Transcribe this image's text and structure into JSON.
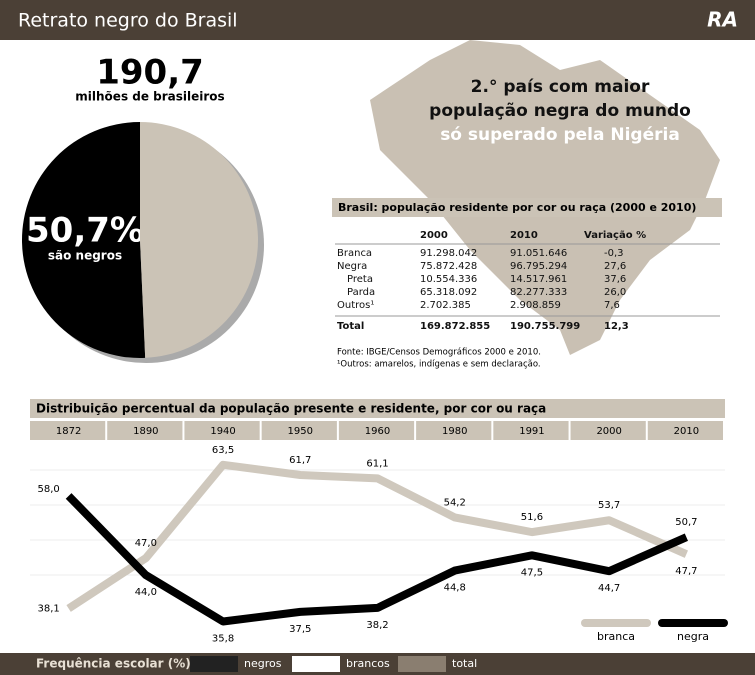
{
  "header": {
    "title": "Retrato negro do Brasil",
    "logo": "RA"
  },
  "callout": {
    "lines": [
      "2.° país com maior",
      "população negra do mundo"
    ],
    "highlight": "só superado pela Nigéria"
  },
  "chart_data": [
    {
      "type": "pie",
      "title": "190,7",
      "subtitle": "milhões de brasileiros",
      "categories": [
        null,
        null
      ],
      "values": [
        50.7,
        49.3
      ],
      "colors": [
        "#000000",
        "#cbc3b6"
      ],
      "value_labels": [
        "50,7%",
        null
      ],
      "value_note": "são negros"
    },
    {
      "type": "line",
      "title": "Distribuição percentual da população presente e residente, por cor ou raça",
      "categories": [
        "1872",
        "1890",
        "1940",
        "1950",
        "1960",
        "1980",
        "1991",
        "2000",
        "2010"
      ],
      "series": [
        {
          "name": "branca",
          "color": "#cfc8bd",
          "values": [
            38.1,
            47.0,
            63.5,
            61.7,
            61.1,
            54.2,
            51.6,
            53.7,
            47.7
          ],
          "value_labels": [
            "38,1",
            "47,0",
            "63,5",
            "61,7",
            "61,1",
            "54,2",
            "51,6",
            "53,7",
            "47,7"
          ]
        },
        {
          "name": "negra",
          "color": "#000000",
          "values": [
            58.0,
            44.0,
            35.8,
            37.5,
            38.2,
            44.8,
            47.5,
            44.7,
            50.7
          ],
          "value_labels": [
            "58,0",
            "44,0",
            "35,8",
            "37,5",
            "38,2",
            "44,8",
            "47,5",
            "44,7",
            "50,7"
          ]
        }
      ],
      "ylim": [
        32,
        67
      ]
    }
  ],
  "table": {
    "title": "Brasil: população residente por cor ou raça (2000 e 2010)",
    "columns": [
      "2000",
      "2010",
      "Variação %"
    ],
    "rows": [
      [
        "Branca",
        "91.298.042",
        "91.051.646",
        "-0,3"
      ],
      [
        "Negra",
        "75.872.428",
        "96.795.294",
        "27,6"
      ],
      [
        "Preta",
        "10.554.336",
        "14.517.961",
        "37,6"
      ],
      [
        "Parda",
        "65.318.092",
        "82.277.333",
        "26,0"
      ],
      [
        "Outros¹",
        "2.702.385",
        "2.908.859",
        "7,6"
      ],
      [
        "Total",
        "169.872.855",
        "190.755.799",
        "12,3"
      ]
    ],
    "notes": [
      "Fonte: IBGE/Censos Demográficos 2000 e 2010.",
      "¹Outros: amarelos, indígenas e sem declaração."
    ]
  },
  "footer": {
    "title": "Frequência escolar (%)",
    "legend": [
      "negros",
      "brancos",
      "total"
    ]
  }
}
